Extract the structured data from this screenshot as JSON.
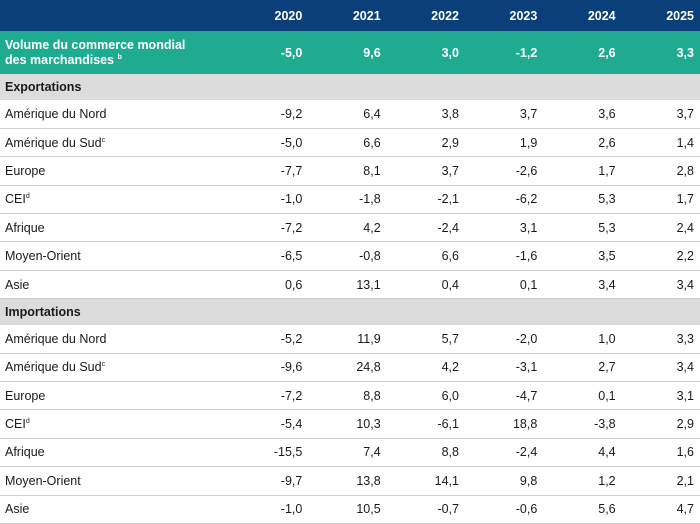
{
  "years": [
    "2020",
    "2021",
    "2022",
    "2023",
    "2024",
    "2025"
  ],
  "world": {
    "label_line1": "Volume du commerce mondial",
    "label_line2": "des marchandises",
    "label_note": "b",
    "values": [
      "-5,0",
      "9,6",
      "3,0",
      "-1,2",
      "2,6",
      "3,3"
    ]
  },
  "sections": [
    {
      "title": "Exportations",
      "rows": [
        {
          "label": "Amérique du Nord",
          "note": "",
          "values": [
            "-9,2",
            "6,4",
            "3,8",
            "3,7",
            "3,6",
            "3,7"
          ]
        },
        {
          "label": "Amérique du Sud",
          "note": "c",
          "values": [
            "-5,0",
            "6,6",
            "2,9",
            "1,9",
            "2,6",
            "1,4"
          ]
        },
        {
          "label": "Europe",
          "note": "",
          "values": [
            "-7,7",
            "8,1",
            "3,7",
            "-2,6",
            "1,7",
            "2,8"
          ]
        },
        {
          "label": "CEI",
          "note": "d",
          "values": [
            "-1,0",
            "-1,8",
            "-2,1",
            "-6,2",
            "5,3",
            "1,7"
          ]
        },
        {
          "label": "Afrique",
          "note": "",
          "values": [
            "-7,2",
            "4,2",
            "-2,4",
            "3,1",
            "5,3",
            "2,4"
          ]
        },
        {
          "label": "Moyen-Orient",
          "note": "",
          "values": [
            "-6,5",
            "-0,8",
            "6,6",
            "-1,6",
            "3,5",
            "2,2"
          ]
        },
        {
          "label": "Asie",
          "note": "",
          "values": [
            "0,6",
            "13,1",
            "0,4",
            "0,1",
            "3,4",
            "3,4"
          ]
        }
      ]
    },
    {
      "title": "Importations",
      "rows": [
        {
          "label": "Amérique du Nord",
          "note": "",
          "values": [
            "-5,2",
            "11,9",
            "5,7",
            "-2,0",
            "1,0",
            "3,3"
          ]
        },
        {
          "label": "Amérique du Sud",
          "note": "c",
          "values": [
            "-9,6",
            "24,8",
            "4,2",
            "-3,1",
            "2,7",
            "3,4"
          ]
        },
        {
          "label": "Europe",
          "note": "",
          "values": [
            "-7,2",
            "8,8",
            "6,0",
            "-4,7",
            "0,1",
            "3,1"
          ]
        },
        {
          "label": "CEI",
          "note": "d",
          "values": [
            "-5,4",
            "10,3",
            "-6,1",
            "18,8",
            "-3,8",
            "2,9"
          ]
        },
        {
          "label": "Afrique",
          "note": "",
          "values": [
            "-15,5",
            "7,4",
            "8,8",
            "-2,4",
            "4,4",
            "1,6"
          ]
        },
        {
          "label": "Moyen-Orient",
          "note": "",
          "values": [
            "-9,7",
            "13,8",
            "14,1",
            "9,8",
            "1,2",
            "2,1"
          ]
        },
        {
          "label": "Asie",
          "note": "",
          "values": [
            "-1,0",
            "10,5",
            "-0,7",
            "-0,6",
            "5,6",
            "4,7"
          ]
        }
      ]
    }
  ]
}
